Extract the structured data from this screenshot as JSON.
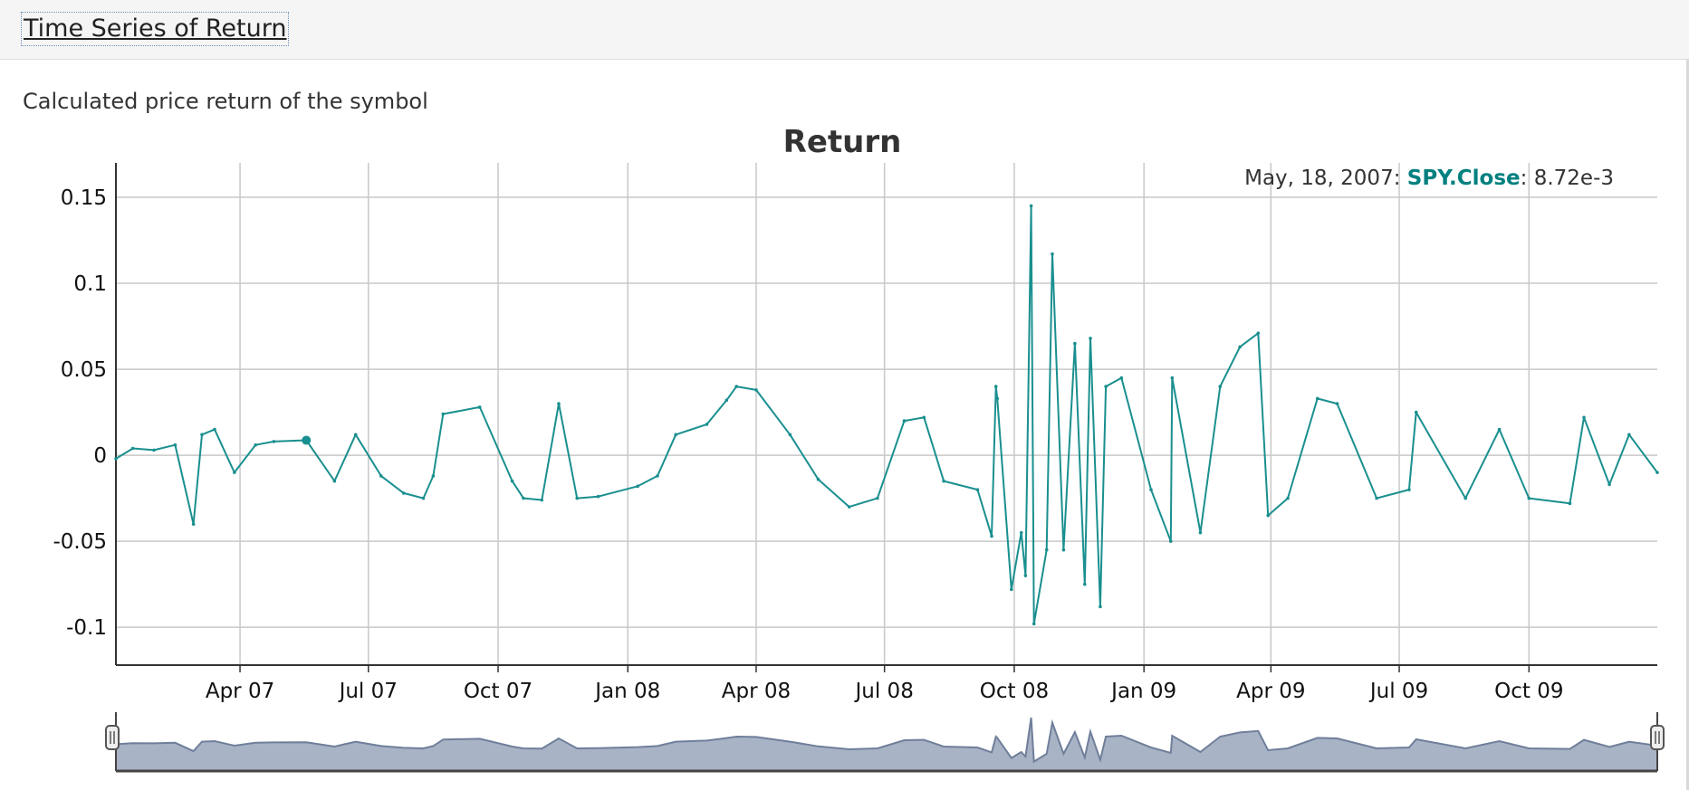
{
  "panel": {
    "title": "Time Series of Return",
    "description": "Calculated price return of the symbol"
  },
  "legend": {
    "date": "May, 18, 2007",
    "series": "SPY.Close",
    "value": "8.72e-3"
  },
  "colors": {
    "series_line": "#1a8f8f",
    "series_label": "#00807f",
    "grid": "#c8c8c8",
    "range_fill": "#a9b3c6",
    "range_line": "#6f7f9a"
  },
  "chart_data": {
    "type": "line",
    "title": "Return",
    "xlabel": "",
    "ylabel": "",
    "x_range": [
      "2007-01-03",
      "2009-12-31"
    ],
    "ylim": [
      -0.122,
      0.17
    ],
    "grid": true,
    "legend_position": "top-right",
    "has_range_selector": true,
    "y_ticks": [
      {
        "value": 0.15,
        "label": "0.15"
      },
      {
        "value": 0.1,
        "label": "0.1"
      },
      {
        "value": 0.05,
        "label": "0.05"
      },
      {
        "value": 0,
        "label": "0"
      },
      {
        "value": -0.05,
        "label": "-0.05"
      },
      {
        "value": -0.1,
        "label": "-0.1"
      }
    ],
    "x_ticks": [
      {
        "date": "2007-04-01",
        "label": "Apr 07"
      },
      {
        "date": "2007-07-01",
        "label": "Jul 07"
      },
      {
        "date": "2007-10-01",
        "label": "Oct 07"
      },
      {
        "date": "2008-01-01",
        "label": "Jan 08"
      },
      {
        "date": "2008-04-01",
        "label": "Apr 08"
      },
      {
        "date": "2008-07-01",
        "label": "Jul 08"
      },
      {
        "date": "2008-10-01",
        "label": "Oct 08"
      },
      {
        "date": "2009-01-01",
        "label": "Jan 09"
      },
      {
        "date": "2009-04-01",
        "label": "Apr 09"
      },
      {
        "date": "2009-07-01",
        "label": "Jul 09"
      },
      {
        "date": "2009-10-01",
        "label": "Oct 09"
      }
    ],
    "highlight": {
      "x": "2007-05-18",
      "y": 0.00872
    },
    "series": [
      {
        "name": "SPY.Close",
        "points": [
          [
            "2007-01-03",
            -0.002
          ],
          [
            "2007-01-15",
            0.004
          ],
          [
            "2007-01-30",
            0.003
          ],
          [
            "2007-02-14",
            0.006
          ],
          [
            "2007-02-27",
            -0.04
          ],
          [
            "2007-03-05",
            0.012
          ],
          [
            "2007-03-14",
            0.015
          ],
          [
            "2007-03-28",
            -0.01
          ],
          [
            "2007-04-12",
            0.006
          ],
          [
            "2007-04-25",
            0.008
          ],
          [
            "2007-05-18",
            0.00872
          ],
          [
            "2007-06-07",
            -0.015
          ],
          [
            "2007-06-22",
            0.012
          ],
          [
            "2007-07-10",
            -0.012
          ],
          [
            "2007-07-26",
            -0.022
          ],
          [
            "2007-08-09",
            -0.025
          ],
          [
            "2007-08-16",
            -0.012
          ],
          [
            "2007-08-23",
            0.024
          ],
          [
            "2007-09-18",
            0.028
          ],
          [
            "2007-10-11",
            -0.015
          ],
          [
            "2007-10-19",
            -0.025
          ],
          [
            "2007-11-01",
            -0.026
          ],
          [
            "2007-11-13",
            0.03
          ],
          [
            "2007-11-26",
            -0.025
          ],
          [
            "2007-12-11",
            -0.024
          ],
          [
            "2008-01-08",
            -0.018
          ],
          [
            "2008-01-22",
            -0.012
          ],
          [
            "2008-02-04",
            0.012
          ],
          [
            "2008-02-26",
            0.018
          ],
          [
            "2008-03-11",
            0.032
          ],
          [
            "2008-03-18",
            0.04
          ],
          [
            "2008-04-01",
            0.038
          ],
          [
            "2008-04-25",
            0.012
          ],
          [
            "2008-05-15",
            -0.014
          ],
          [
            "2008-06-06",
            -0.03
          ],
          [
            "2008-06-26",
            -0.025
          ],
          [
            "2008-07-15",
            0.02
          ],
          [
            "2008-07-29",
            0.022
          ],
          [
            "2008-08-12",
            -0.015
          ],
          [
            "2008-09-05",
            -0.02
          ],
          [
            "2008-09-15",
            -0.047
          ],
          [
            "2008-09-18",
            0.04
          ],
          [
            "2008-09-19",
            0.033
          ],
          [
            "2008-09-29",
            -0.078
          ],
          [
            "2008-10-06",
            -0.045
          ],
          [
            "2008-10-09",
            -0.07
          ],
          [
            "2008-10-13",
            0.145
          ],
          [
            "2008-10-15",
            -0.098
          ],
          [
            "2008-10-24",
            -0.055
          ],
          [
            "2008-10-28",
            0.117
          ],
          [
            "2008-11-05",
            -0.055
          ],
          [
            "2008-11-13",
            0.065
          ],
          [
            "2008-11-20",
            -0.075
          ],
          [
            "2008-11-24",
            0.068
          ],
          [
            "2008-12-01",
            -0.088
          ],
          [
            "2008-12-05",
            0.04
          ],
          [
            "2008-12-16",
            0.045
          ],
          [
            "2009-01-06",
            -0.02
          ],
          [
            "2009-01-20",
            -0.05
          ],
          [
            "2009-01-21",
            0.045
          ],
          [
            "2009-02-10",
            -0.045
          ],
          [
            "2009-02-24",
            0.04
          ],
          [
            "2009-03-10",
            0.063
          ],
          [
            "2009-03-23",
            0.071
          ],
          [
            "2009-03-30",
            -0.035
          ],
          [
            "2009-04-13",
            -0.025
          ],
          [
            "2009-05-04",
            0.033
          ],
          [
            "2009-05-18",
            0.03
          ],
          [
            "2009-06-15",
            -0.025
          ],
          [
            "2009-07-08",
            -0.02
          ],
          [
            "2009-07-13",
            0.025
          ],
          [
            "2009-08-17",
            -0.025
          ],
          [
            "2009-09-10",
            0.015
          ],
          [
            "2009-10-01",
            -0.025
          ],
          [
            "2009-10-30",
            -0.028
          ],
          [
            "2009-11-09",
            0.022
          ],
          [
            "2009-11-27",
            -0.017
          ],
          [
            "2009-12-11",
            0.012
          ],
          [
            "2009-12-31",
            -0.01
          ]
        ]
      }
    ]
  }
}
